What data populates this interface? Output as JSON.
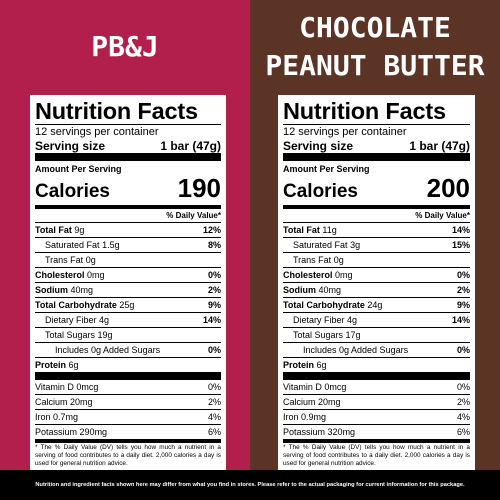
{
  "panels": [
    {
      "title": "PB&J",
      "label": {
        "heading": "Nutrition Facts",
        "servings": "12 servings per container",
        "serving_size": "Serving size",
        "serving_amount": "1 bar (47g)",
        "amount_per_serving": "Amount Per Serving",
        "calories_label": "Calories",
        "calories": "190",
        "dv_header": "% Daily Value*",
        "nutrients": [
          {
            "name": "Total Fat",
            "amount": "9g",
            "dv": "12%"
          },
          {
            "name": "Saturated Fat",
            "amount": "1.5g",
            "dv": "8%"
          },
          {
            "name": "Trans Fat",
            "amount": "0g"
          },
          {
            "name": "Cholesterol",
            "amount": "0mg",
            "dv": "0%"
          },
          {
            "name": "Sodium",
            "amount": "40mg",
            "dv": "2%"
          },
          {
            "name": "Total Carbohydrate",
            "amount": "25g",
            "dv": "9%"
          },
          {
            "name": "Dietary Fiber",
            "amount": "4g",
            "dv": "14%"
          },
          {
            "name": "Total Sugars",
            "amount": "19g"
          },
          {
            "name": "Includes 0g Added Sugars",
            "dv": "0%"
          },
          {
            "name": "Protein",
            "amount": "6g"
          }
        ],
        "vitamins": [
          {
            "name": "Vitamin D",
            "amount": "0mcg",
            "dv": "0%"
          },
          {
            "name": "Calcium",
            "amount": "20mg",
            "dv": "2%"
          },
          {
            "name": "Iron",
            "amount": "0.7mg",
            "dv": "4%"
          },
          {
            "name": "Potassium",
            "amount": "290mg",
            "dv": "6%"
          }
        ],
        "footnote": "* The % Daily Value (DV) tells you how much a nutrient in a serving of food contributes to a daily diet. 2,000 calories a day is used for general nutrition advice."
      }
    },
    {
      "title": "CHOCOLATE PEANUT BUTTER",
      "label": {
        "heading": "Nutrition Facts",
        "servings": "12 servings per container",
        "serving_size": "Serving size",
        "serving_amount": "1 bar (47g)",
        "amount_per_serving": "Amount Per Serving",
        "calories_label": "Calories",
        "calories": "200",
        "dv_header": "% Daily Value*",
        "nutrients": [
          {
            "name": "Total Fat",
            "amount": "11g",
            "dv": "14%"
          },
          {
            "name": "Saturated Fat",
            "amount": "3g",
            "dv": "15%"
          },
          {
            "name": "Trans Fat",
            "amount": "0g"
          },
          {
            "name": "Cholesterol",
            "amount": "0mg",
            "dv": "0%"
          },
          {
            "name": "Sodium",
            "amount": "40mg",
            "dv": "2%"
          },
          {
            "name": "Total Carbohydrate",
            "amount": "24g",
            "dv": "9%"
          },
          {
            "name": "Dietary Fiber",
            "amount": "4g",
            "dv": "14%"
          },
          {
            "name": "Total Sugars",
            "amount": "17g"
          },
          {
            "name": "Includes 0g Added Sugars",
            "dv": "0%"
          },
          {
            "name": "Protein",
            "amount": "6g"
          }
        ],
        "vitamins": [
          {
            "name": "Vitamin D",
            "amount": "0mcg",
            "dv": "0%"
          },
          {
            "name": "Calcium",
            "amount": "20mg",
            "dv": "2%"
          },
          {
            "name": "Iron",
            "amount": "0.9mg",
            "dv": "4%"
          },
          {
            "name": "Potassium",
            "amount": "320mg",
            "dv": "6%"
          }
        ],
        "footnote": "* The % Daily Value (DV) tells you how much a nutrient in a serving of food contributes to a daily diet. 2,000 calories a day is used for general nutrition advice."
      }
    }
  ],
  "footer": "Nutrition and ingredient facts shown here may differ from what you find in stores. Please refer to the actual packaging for current information for this package."
}
